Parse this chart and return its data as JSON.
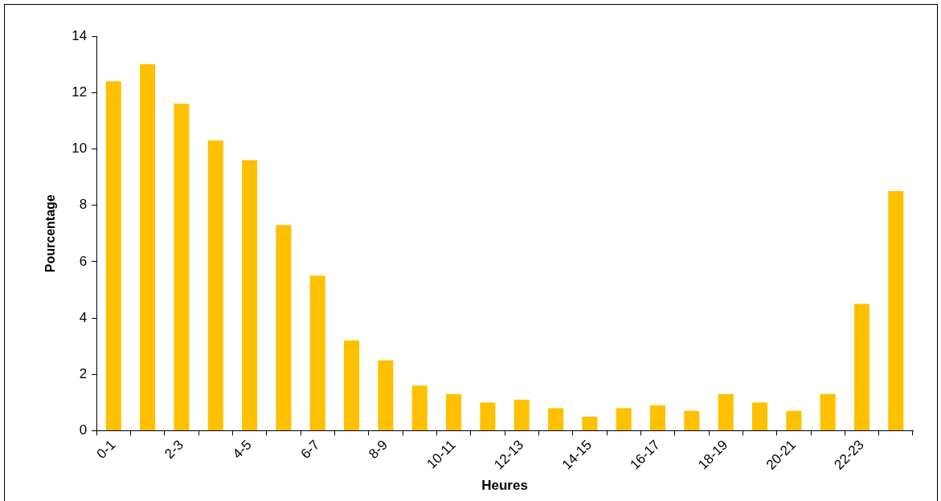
{
  "chart_data": {
    "type": "bar",
    "xlabel": "Heures",
    "ylabel": "Pourcentage",
    "categories": [
      "0-1",
      null,
      "2-3",
      null,
      "4-5",
      null,
      "6-7",
      null,
      "8-9",
      null,
      "10-11",
      null,
      "12-13",
      null,
      "14-15",
      null,
      "16-17",
      null,
      "18-19",
      null,
      "20-21",
      null,
      "22-23",
      null
    ],
    "values": [
      12.4,
      13.0,
      11.6,
      10.3,
      9.6,
      7.3,
      5.5,
      3.2,
      2.5,
      1.6,
      1.3,
      1.0,
      1.1,
      0.8,
      0.5,
      0.8,
      0.9,
      0.7,
      1.3,
      1.0,
      0.7,
      1.3,
      4.5,
      8.5
    ],
    "color": "#ffc000",
    "ylim": [
      0,
      14
    ],
    "yticks": [
      0,
      2,
      4,
      6,
      8,
      10,
      12,
      14
    ],
    "grid": false,
    "legend": false
  }
}
